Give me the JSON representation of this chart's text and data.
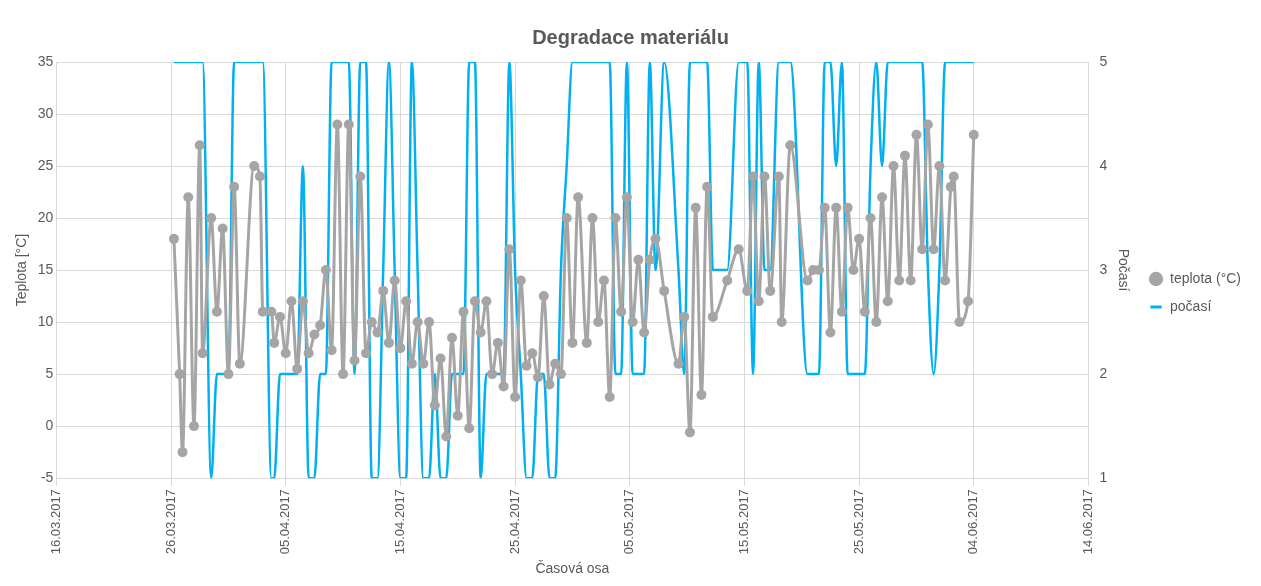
{
  "chart_data": {
    "type": "line",
    "title": "Degradace materiálu",
    "xlabel": "Časová osa",
    "ylabel": "Teplota [°C]",
    "y2label": "Počasí",
    "x": [
      "2017-03-26T06:00",
      "2017-03-26T18:00",
      "2017-03-27T00:00",
      "2017-03-27T12:00",
      "2017-03-28T00:00",
      "2017-03-28T12:00",
      "2017-03-28T18:00",
      "2017-03-29T12:00",
      "2017-03-30T00:00",
      "2017-03-30T12:00",
      "2017-03-31T00:00",
      "2017-03-31T12:00",
      "2017-04-01T00:00",
      "2017-04-02T06:00",
      "2017-04-02T18:00",
      "2017-04-03T00:00",
      "2017-04-03T18:00",
      "2017-04-04T00:00",
      "2017-04-04T12:00",
      "2017-04-05T00:00",
      "2017-04-05T12:00",
      "2017-04-06T00:00",
      "2017-04-06T12:00",
      "2017-04-07T00:00",
      "2017-04-07T12:00",
      "2017-04-08T00:00",
      "2017-04-08T12:00",
      "2017-04-09T00:00",
      "2017-04-09T12:00",
      "2017-04-10T00:00",
      "2017-04-10T12:00",
      "2017-04-11T00:00",
      "2017-04-11T12:00",
      "2017-04-12T00:00",
      "2017-04-12T12:00",
      "2017-04-13T00:00",
      "2017-04-13T12:00",
      "2017-04-14T00:00",
      "2017-04-14T12:00",
      "2017-04-15T00:00",
      "2017-04-15T12:00",
      "2017-04-16T00:00",
      "2017-04-16T12:00",
      "2017-04-17T00:00",
      "2017-04-17T12:00",
      "2017-04-18T00:00",
      "2017-04-18T12:00",
      "2017-04-19T00:00",
      "2017-04-19T12:00",
      "2017-04-20T00:00",
      "2017-04-20T12:00",
      "2017-04-21T00:00",
      "2017-04-21T12:00",
      "2017-04-22T00:00",
      "2017-04-22T12:00",
      "2017-04-23T00:00",
      "2017-04-23T12:00",
      "2017-04-24T00:00",
      "2017-04-24T12:00",
      "2017-04-25T00:00",
      "2017-04-25T12:00",
      "2017-04-26T00:00",
      "2017-04-26T12:00",
      "2017-04-27T00:00",
      "2017-04-27T12:00",
      "2017-04-28T00:00",
      "2017-04-28T12:00",
      "2017-04-29T00:00",
      "2017-04-29T12:00",
      "2017-04-30T00:00",
      "2017-04-30T12:00",
      "2017-05-01T06:00",
      "2017-05-01T18:00",
      "2017-05-02T06:00",
      "2017-05-02T18:00",
      "2017-05-03T06:00",
      "2017-05-03T18:00",
      "2017-05-04T06:00",
      "2017-05-04T18:00",
      "2017-05-05T06:00",
      "2017-05-05T18:00",
      "2017-05-06T06:00",
      "2017-05-06T18:00",
      "2017-05-07T06:00",
      "2017-05-08T00:00",
      "2017-05-09T06:00",
      "2017-05-09T18:00",
      "2017-05-10T06:00",
      "2017-05-10T18:00",
      "2017-05-11T06:00",
      "2017-05-11T18:00",
      "2017-05-12T06:00",
      "2017-05-13T12:00",
      "2017-05-14T12:00",
      "2017-05-15T06:00",
      "2017-05-15T18:00",
      "2017-05-16T06:00",
      "2017-05-16T18:00",
      "2017-05-17T06:00",
      "2017-05-18T00:00",
      "2017-05-18T06:00",
      "2017-05-19T00:00",
      "2017-05-20T12:00",
      "2017-05-21T00:00",
      "2017-05-21T12:00",
      "2017-05-22T00:00",
      "2017-05-22T12:00",
      "2017-05-23T00:00",
      "2017-05-23T12:00",
      "2017-05-24T00:00",
      "2017-05-24T12:00",
      "2017-05-25T00:00",
      "2017-05-25T12:00",
      "2017-05-26T00:00",
      "2017-05-26T12:00",
      "2017-05-27T00:00",
      "2017-05-27T12:00",
      "2017-05-28T00:00",
      "2017-05-28T12:00",
      "2017-05-29T00:00",
      "2017-05-29T12:00",
      "2017-05-30T00:00",
      "2017-05-30T12:00",
      "2017-05-31T00:00",
      "2017-05-31T12:00",
      "2017-06-01T00:00",
      "2017-06-01T12:00",
      "2017-06-02T00:00",
      "2017-06-02T06:00",
      "2017-06-02T18:00",
      "2017-06-03T12:00",
      "2017-06-04T00:00"
    ],
    "series": [
      {
        "name": "teplota (°C)",
        "color": "#a5a5a5",
        "marker": "circle",
        "values": [
          18,
          5,
          -2.5,
          22,
          0,
          27,
          7,
          20,
          11,
          19,
          5,
          23,
          6,
          25,
          24,
          11,
          11,
          8,
          10.5,
          7,
          12,
          5.5,
          12,
          7,
          8.8,
          9.7,
          15,
          7.3,
          29,
          5,
          29,
          6.3,
          24,
          7,
          10,
          9,
          13,
          8,
          14,
          7.5,
          12,
          6,
          10,
          6,
          10,
          2,
          6.5,
          -1,
          8.5,
          1,
          11,
          -0.2,
          12,
          9,
          12,
          5,
          8,
          3.8,
          17,
          2.8,
          14,
          5.8,
          7,
          4.7,
          12.5,
          4,
          6,
          5,
          20,
          8,
          22,
          8,
          20,
          10,
          14,
          2.8,
          20,
          11,
          22,
          10,
          16,
          9,
          16,
          18,
          13,
          6,
          10.5,
          -0.6,
          21,
          3,
          23,
          10.5,
          14,
          17,
          13,
          24,
          12,
          24,
          13,
          24,
          10,
          27,
          14,
          15,
          15,
          21,
          9,
          21,
          11,
          21,
          15,
          18,
          11,
          20,
          10,
          22,
          12,
          25,
          14,
          26,
          14,
          28,
          17,
          29,
          17,
          25,
          14,
          23,
          24,
          10,
          12,
          28
        ]
      },
      {
        "name": "počasí",
        "color": "#00b0f0",
        "marker": "none",
        "axis": "y2",
        "values": [
          5,
          5,
          5,
          5,
          5,
          5,
          5,
          1,
          2,
          2,
          2,
          5,
          5,
          5,
          5,
          5,
          1,
          1,
          2,
          2,
          2,
          2,
          4,
          1,
          1,
          2,
          2,
          5,
          5,
          5,
          5,
          2,
          5,
          5,
          1,
          1,
          3,
          5,
          3,
          1,
          1,
          5,
          3,
          1,
          1,
          2,
          1,
          1,
          2,
          2,
          2,
          5,
          5,
          1,
          2,
          2,
          2,
          2,
          5,
          3,
          2,
          1,
          1,
          2,
          2,
          1,
          1,
          3,
          4,
          5,
          5,
          5,
          5,
          5,
          5,
          5,
          2,
          2,
          5,
          2,
          2,
          2,
          5,
          3,
          5,
          3,
          2,
          5,
          5,
          5,
          5,
          3,
          3,
          5,
          5,
          2,
          5,
          3,
          3,
          5,
          5,
          5,
          2,
          2,
          2,
          5,
          5,
          4,
          5,
          2,
          2,
          2,
          2,
          4,
          5,
          4,
          5,
          5,
          5,
          5,
          5,
          5,
          5,
          3,
          2,
          3,
          5,
          5,
          5,
          5,
          5,
          5
        ]
      }
    ],
    "xlim": [
      "2017-03-16",
      "2017-06-14"
    ],
    "xticks": [
      {
        "value": "2017-03-16",
        "label": "16.03.2017"
      },
      {
        "value": "2017-03-26",
        "label": "26.03.2017"
      },
      {
        "value": "2017-04-05",
        "label": "05.04.2017"
      },
      {
        "value": "2017-04-15",
        "label": "15.04.2017"
      },
      {
        "value": "2017-04-25",
        "label": "25.04.2017"
      },
      {
        "value": "2017-05-05",
        "label": "05.05.2017"
      },
      {
        "value": "2017-05-15",
        "label": "15.05.2017"
      },
      {
        "value": "2017-05-25",
        "label": "25.05.2017"
      },
      {
        "value": "2017-06-04",
        "label": "04.06.2017"
      },
      {
        "value": "2017-06-14",
        "label": "14.06.2017"
      }
    ],
    "ylim": [
      -5,
      35
    ],
    "yticks": [
      -5,
      0,
      5,
      10,
      15,
      20,
      25,
      30,
      35
    ],
    "y2lim": [
      1,
      5
    ],
    "y2ticks": [
      1,
      2,
      3,
      4,
      5
    ],
    "grid": true,
    "legend": "right"
  }
}
